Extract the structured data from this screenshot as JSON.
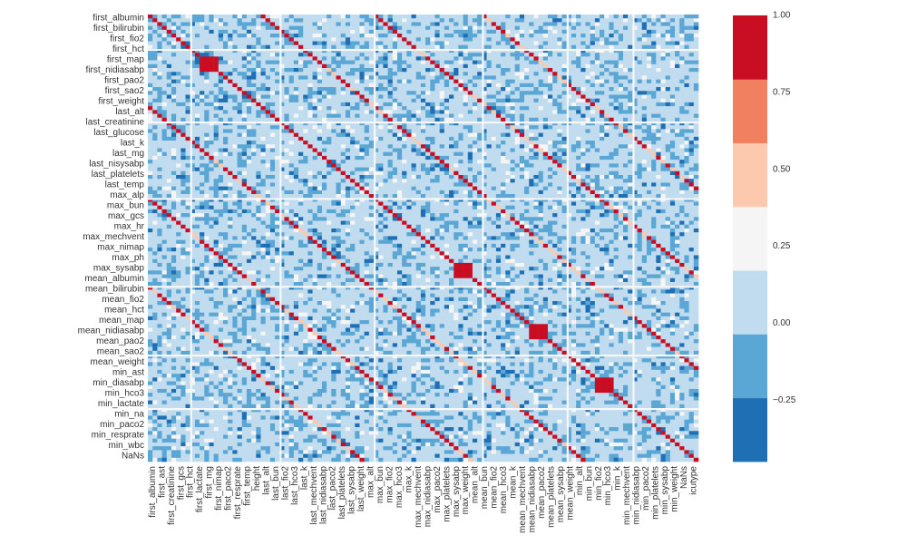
{
  "chart_data": {
    "type": "heatmap",
    "title": "",
    "xlabel": "",
    "ylabel": "",
    "n_variables": 117,
    "y_tick_labels": [
      "first_albumin",
      "first_bilirubin",
      "first_fio2",
      "first_hct",
      "first_map",
      "first_nidiasabp",
      "first_pao2",
      "first_sao2",
      "first_weight",
      "last_alt",
      "last_creatinine",
      "last_glucose",
      "last_k",
      "last_mg",
      "last_nisysabp",
      "last_platelets",
      "last_temp",
      "max_alp",
      "max_bun",
      "max_gcs",
      "max_hr",
      "max_mechvent",
      "max_nimap",
      "max_ph",
      "max_sysabp",
      "mean_albumin",
      "mean_bilirubin",
      "mean_fio2",
      "mean_hct",
      "mean_map",
      "mean_nidiasabp",
      "mean_pao2",
      "mean_sao2",
      "mean_weight",
      "min_ast",
      "min_diasabp",
      "min_hco3",
      "min_lactate",
      "min_na",
      "min_paco2",
      "min_resprate",
      "min_wbc",
      "NaNs"
    ],
    "x_tick_labels": [
      "first_albumin",
      "first_ast",
      "first_creatinine",
      "first_gcs",
      "first_hct",
      "first_lactate",
      "first_mg",
      "first_nimap",
      "first_paco2",
      "first_resprate",
      "first_temp",
      "height",
      "last_alt",
      "last_bun",
      "last_fio2",
      "last_hco3",
      "last_k",
      "last_mechvent",
      "last_nidiasabp",
      "last_paco2",
      "last_platelets",
      "last_sysabp",
      "last_weight",
      "max_alt",
      "max_bun",
      "max_fio2",
      "max_hco3",
      "max_k",
      "max_mechvent",
      "max_nidiasabp",
      "max_paco2",
      "max_platelets",
      "max_sysabp",
      "max_weight",
      "mean_alt",
      "mean_bun",
      "mean_fio2",
      "mean_hco3",
      "mean_k",
      "mean_mechvent",
      "mean_nidiasabp",
      "mean_paco2",
      "mean_platelets",
      "mean_sysabp",
      "mean_weight",
      "min_alt",
      "min_bun",
      "min_fio2",
      "min_hco3",
      "min_k",
      "min_mechvent",
      "min_nidiasabp",
      "min_paco2",
      "min_platelets",
      "min_sysabp",
      "min_weight",
      "NaNs",
      "icutype"
    ],
    "colorbar": {
      "min": -0.45,
      "max": 1.0,
      "boundaries": [
        -0.45,
        -0.2429,
        -0.0357,
        0.1714,
        0.3786,
        0.5857,
        0.7929,
        1.0
      ],
      "colors": [
        "#1f6fb4",
        "#5aa6d4",
        "#c1dcef",
        "#f5f5f5",
        "#fdc9ae",
        "#f08060",
        "#c90d22"
      ],
      "ticks": [
        -0.25,
        0.0,
        0.25,
        0.5,
        0.75,
        1.0
      ],
      "tick_labels": [
        "−0.25",
        "0.00",
        "0.25",
        "0.50",
        "0.75",
        "1.00"
      ]
    },
    "grid": false,
    "legend": "colorbar-right"
  }
}
